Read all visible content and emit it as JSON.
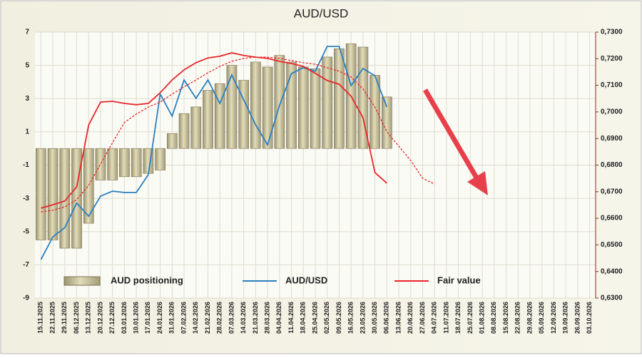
{
  "chart_data": {
    "type": "bar-line",
    "title": "AUD/USD",
    "categories": [
      "15.11.2025",
      "22.11.2025",
      "29.11.2025",
      "06.12.2025",
      "13.12.2025",
      "20.12.2025",
      "27.12.2025",
      "03.01.2026",
      "10.01.2026",
      "17.01.2026",
      "24.01.2026",
      "31.01.2026",
      "07.02.2026",
      "14.02.2026",
      "21.02.2026",
      "28.02.2026",
      "07.03.2026",
      "14.03.2026",
      "21.03.2026",
      "28.03.2026",
      "04.04.2026",
      "11.04.2026",
      "18.04.2026",
      "25.04.2026",
      "02.05.2026",
      "09.05.2026",
      "16.05.2026",
      "23.05.2026",
      "30.05.2026",
      "06.06.2026",
      "13.06.2026",
      "20.06.2026",
      "27.06.2026",
      "04.07.2026",
      "11.07.2026",
      "18.07.2026",
      "25.07.2026",
      "01.08.2026",
      "08.08.2026",
      "15.08.2026",
      "22.08.2026",
      "29.08.2026",
      "05.09.2026",
      "12.09.2026",
      "19.09.2026",
      "26.09.2026",
      "03.10.2026"
    ],
    "ylim": [
      -9,
      7
    ],
    "yticks": [
      -9,
      -7,
      -5,
      -3,
      -1,
      1,
      3,
      5,
      7
    ],
    "y2lim": [
      0.63,
      0.73
    ],
    "y2ticks": [
      {
        "value": 0.63,
        "label": "0,6300"
      },
      {
        "value": 0.64,
        "label": "0,6400"
      },
      {
        "value": 0.65,
        "label": "0,6500"
      },
      {
        "value": 0.66,
        "label": "0,6600"
      },
      {
        "value": 0.67,
        "label": "0,6700"
      },
      {
        "value": 0.68,
        "label": "0,6800"
      },
      {
        "value": 0.69,
        "label": "0,6900"
      },
      {
        "value": 0.7,
        "label": "0,7000"
      },
      {
        "value": 0.71,
        "label": "0,7100"
      },
      {
        "value": 0.72,
        "label": "0,7200"
      },
      {
        "value": 0.73,
        "label": "0,7300"
      }
    ],
    "grid": true,
    "legend": "bottom",
    "series": [
      {
        "name": "AUD positioning",
        "type": "bar",
        "color": "#c9c19a",
        "values": [
          -5.5,
          -5.5,
          -6.0,
          -6.0,
          -4.5,
          -1.9,
          -1.9,
          -1.7,
          -1.7,
          -1.5,
          -1.3,
          0.9,
          2.1,
          2.5,
          3.5,
          3.9,
          5.0,
          4.1,
          5.2,
          4.9,
          5.6,
          5.2,
          4.9,
          4.8,
          5.5,
          6.0,
          6.3,
          6.1,
          4.4,
          3.1,
          null,
          null,
          null,
          null,
          null,
          null,
          null,
          null,
          null,
          null,
          null,
          null,
          null,
          null,
          null,
          null,
          null
        ]
      },
      {
        "name": "AUD/USD",
        "type": "line",
        "axis": "y2",
        "color": "#2a7fc1",
        "values": [
          0.6445,
          0.653,
          0.6565,
          0.6657,
          0.6608,
          0.6683,
          0.6702,
          0.6697,
          0.6697,
          0.6764,
          0.7067,
          0.6984,
          0.712,
          0.7051,
          0.712,
          0.7032,
          0.7139,
          0.7045,
          0.6951,
          0.6876,
          0.7024,
          0.7144,
          0.7166,
          0.7153,
          0.7246,
          0.7246,
          0.7099,
          0.7163,
          0.7136,
          0.7018,
          null,
          null,
          null,
          null,
          null,
          null,
          null,
          null,
          null,
          null,
          null,
          null,
          null,
          null,
          null,
          null,
          null
        ]
      },
      {
        "name": "Fair value",
        "type": "line",
        "axis": "y2",
        "color": "#e8262a",
        "values": [
          0.6638,
          0.6651,
          0.6665,
          0.6718,
          0.6951,
          0.7037,
          0.704,
          0.7032,
          0.7027,
          0.7032,
          0.7072,
          0.712,
          0.7158,
          0.7185,
          0.7203,
          0.7209,
          0.7222,
          0.7212,
          0.7206,
          0.7201,
          0.719,
          0.7182,
          0.7171,
          0.7145,
          0.7118,
          0.7104,
          0.7059,
          0.6978,
          0.6772,
          0.6732,
          null,
          null,
          null,
          null,
          null,
          null,
          null,
          null,
          null,
          null,
          null,
          null,
          null,
          null,
          null,
          null,
          null
        ]
      },
      {
        "type": "line",
        "axis": "y2",
        "color": "#e8262a",
        "style": "dashed",
        "values": [
          0.6624,
          0.663,
          0.6643,
          0.667,
          0.6724,
          0.6804,
          0.6884,
          0.696,
          0.6992,
          0.7018,
          0.7037,
          0.7067,
          0.7094,
          0.712,
          0.7147,
          0.7171,
          0.719,
          0.7201,
          0.7206,
          0.7206,
          0.7201,
          0.7193,
          0.7185,
          0.7179,
          0.7166,
          0.7153,
          0.7131,
          0.7086,
          0.7018,
          0.6925,
          0.6871,
          0.6817,
          0.675,
          0.6729,
          null,
          null,
          null,
          null,
          null,
          null,
          null,
          null,
          null,
          null,
          null,
          null,
          null
        ]
      }
    ]
  }
}
